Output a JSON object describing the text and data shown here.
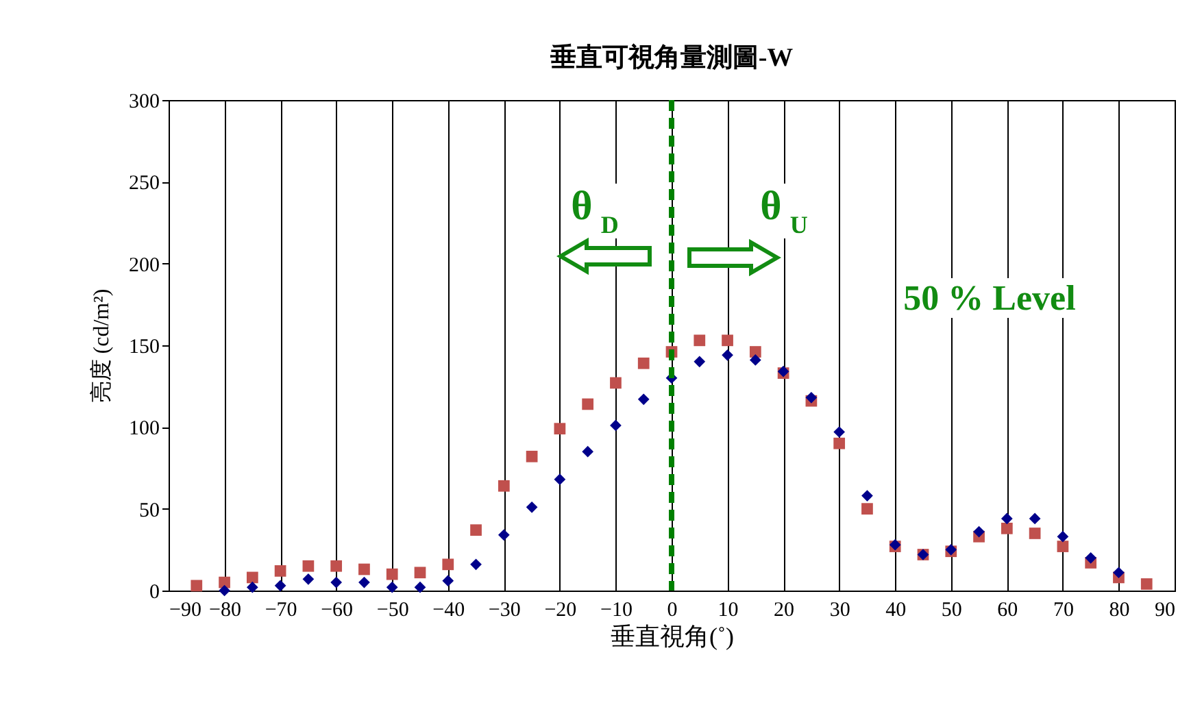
{
  "chart_data": {
    "type": "scatter",
    "title": "垂直可視角量測圖-W",
    "xlabel": "垂直視角(˚)",
    "ylabel": "亮度 (cd/m²)",
    "xlim": [
      -90,
      90
    ],
    "xticks": [
      -90,
      -80,
      -70,
      -60,
      -50,
      -40,
      -30,
      -20,
      -10,
      0,
      10,
      20,
      30,
      40,
      50,
      60,
      70,
      80,
      90
    ],
    "ylim": [
      0,
      300
    ],
    "yticks": [
      0,
      50,
      100,
      150,
      200,
      250,
      300
    ],
    "grid": "x",
    "x": [
      -85,
      -80,
      -75,
      -70,
      -65,
      -60,
      -55,
      -50,
      -45,
      -40,
      -35,
      -30,
      -25,
      -20,
      -15,
      -10,
      -5,
      0,
      5,
      10,
      15,
      20,
      25,
      30,
      35,
      40,
      45,
      50,
      55,
      60,
      65,
      70,
      75,
      80,
      85
    ],
    "series": [
      {
        "color": "#c0504d",
        "marker": "square",
        "values": [
          3,
          5,
          8,
          12,
          15,
          15,
          13,
          10,
          11,
          16,
          37,
          64,
          82,
          99,
          114,
          127,
          139,
          146,
          153,
          153,
          146,
          133,
          116,
          90,
          50,
          27,
          22,
          24,
          33,
          38,
          35,
          27,
          17,
          8,
          4
        ]
      },
      {
        "color": "#00008b",
        "marker": "diamond",
        "values": [
          null,
          0,
          2,
          3,
          7,
          5,
          5,
          2,
          2,
          6,
          16,
          34,
          51,
          68,
          85,
          101,
          117,
          130,
          140,
          144,
          141,
          134,
          118,
          97,
          58,
          28,
          22,
          25,
          36,
          44,
          44,
          33,
          20,
          11,
          null
        ]
      }
    ],
    "ref_lines": [
      {
        "axis": "x",
        "value": 0,
        "color": "#008000",
        "line_style": "dashed"
      }
    ],
    "annotations": [
      "θ$_{D}$",
      "θ$_{U}$",
      "50 % Level"
    ]
  }
}
